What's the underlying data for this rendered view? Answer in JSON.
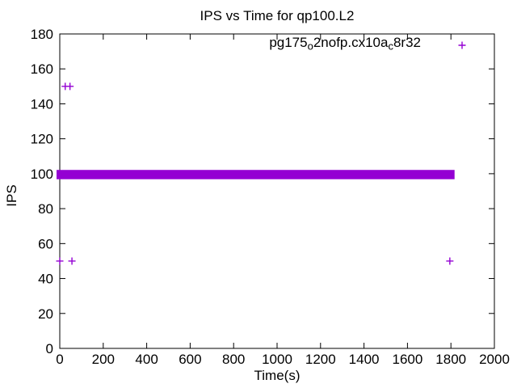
{
  "chart_data": {
    "type": "scatter",
    "title": "IPS vs Time for qp100.L2",
    "xlabel": "Time(s)",
    "ylabel": "IPS",
    "xlim": [
      0,
      2000
    ],
    "ylim": [
      0,
      180
    ],
    "x_ticks": [
      0,
      200,
      400,
      600,
      800,
      1000,
      1200,
      1400,
      1600,
      1800,
      2000
    ],
    "y_ticks": [
      0,
      20,
      40,
      60,
      80,
      100,
      120,
      140,
      160,
      180
    ],
    "grid": false,
    "legend_position": "top-right-inside",
    "background_color": "#ffffff",
    "axis_color": "#000000",
    "marker_style": "plus",
    "series": [
      {
        "name": "pg175_o2nofp.cx10a_c8r32",
        "label_parts": [
          {
            "text": "pg175",
            "subscript": false
          },
          {
            "text": "o",
            "subscript": true
          },
          {
            "text": "2nofp.cx10a",
            "subscript": false
          },
          {
            "text": "c",
            "subscript": true
          },
          {
            "text": "8r32",
            "subscript": false
          }
        ],
        "color": "#9400d3",
        "dense_band": {
          "x_start": 0,
          "x_end": 1800,
          "y_min": 98,
          "y_max": 101,
          "y_typical": 99.5,
          "description": "densely overlapping plus markers at IPS ~99-100 for the whole run t=0..1800s"
        },
        "outliers": [
          [
            25,
            150
          ],
          [
            47,
            150
          ],
          [
            0,
            50
          ],
          [
            56,
            50
          ],
          [
            1795,
            50
          ]
        ]
      }
    ]
  }
}
